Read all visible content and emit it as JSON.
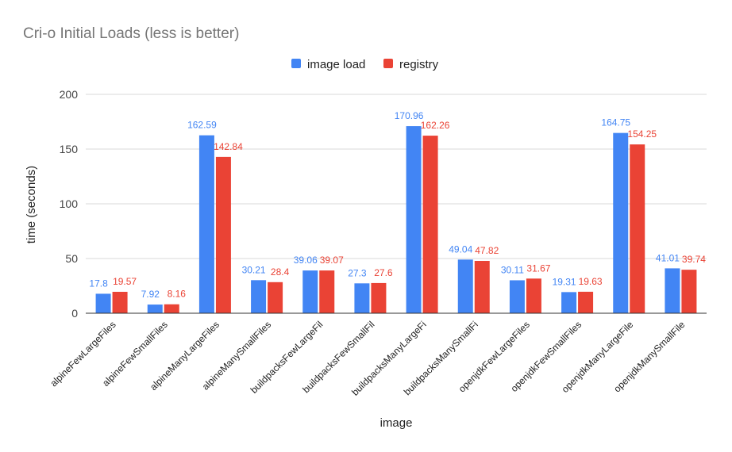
{
  "chart_data": {
    "type": "bar",
    "title": "Cri-o Initial Loads (less is better)",
    "xlabel": "image",
    "ylabel": "time (seconds)",
    "ylim": [
      0,
      200
    ],
    "yticks": [
      "0",
      "50",
      "100",
      "150",
      "200"
    ],
    "grid": true,
    "legend_position": "top",
    "categories": [
      "alpineFewLargeFiles",
      "alpineFewSmallFiles",
      "alpineManyLargeFiles",
      "alpineManySmallFiles",
      "buildpacksFewLargeFil",
      "buildpacksFewSmallFil",
      "buildpacksManyLargeFi",
      "buildpacksManySmallFi",
      "openjdkFewLargeFiles",
      "openjdkFewSmallFiles",
      "openjdkManyLargeFile",
      "openjdkManySmallFile"
    ],
    "series": [
      {
        "name": "image load",
        "color": "#4285F4",
        "values": [
          17.8,
          7.92,
          162.59,
          30.21,
          39.06,
          27.3,
          170.96,
          49.04,
          30.11,
          19.31,
          164.75,
          41.01
        ],
        "labels": [
          "17.8",
          "7.92",
          "162.59",
          "30.21",
          "39.06",
          "27.3",
          "170.96",
          "49.04",
          "30.11",
          "19.31",
          "164.75",
          "41.01"
        ]
      },
      {
        "name": "registry",
        "color": "#EA4335",
        "values": [
          19.57,
          8.16,
          142.84,
          28.4,
          39.07,
          27.6,
          162.26,
          47.82,
          31.67,
          19.63,
          154.25,
          39.74
        ],
        "labels": [
          "19.57",
          "8.16",
          "142.84",
          "28.4",
          "39.07",
          "27.6",
          "162.26",
          "47.82",
          "31.67",
          "19.63",
          "154.25",
          "39.74"
        ]
      }
    ]
  }
}
